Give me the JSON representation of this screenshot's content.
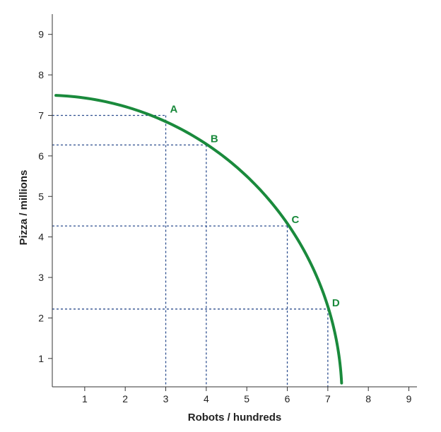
{
  "chart_data": {
    "type": "line",
    "xlabel": "Robots / hundreds",
    "ylabel": "Pizza / millions",
    "xlim": [
      0.2,
      9.2
    ],
    "ylim": [
      0.3,
      9.5
    ],
    "x_ticks": [
      1,
      2,
      3,
      4,
      5,
      6,
      7,
      8,
      9
    ],
    "y_ticks": [
      1,
      2,
      3,
      4,
      5,
      6,
      7,
      8,
      9
    ],
    "grid": false,
    "curve": {
      "x_intercept": 7.35,
      "y_intercept": 7.5
    },
    "points": [
      {
        "label": "A",
        "x": 3,
        "y": 7.0
      },
      {
        "label": "B",
        "x": 4,
        "y": 6.27
      },
      {
        "label": "C",
        "x": 6,
        "y": 4.27
      },
      {
        "label": "D",
        "x": 7,
        "y": 2.22
      }
    ],
    "colors": {
      "curve": "#1a8a3c",
      "guides": "#2e4f8f",
      "axis": "#333333"
    }
  }
}
